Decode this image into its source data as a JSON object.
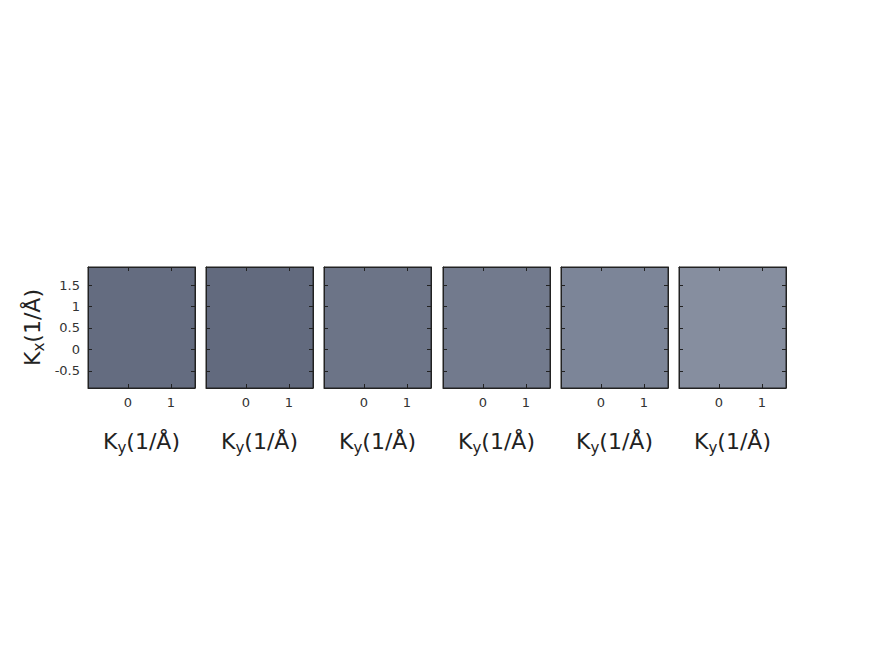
{
  "chart_data": [
    {
      "type": "image",
      "color": "#646c80",
      "xlim": [
        -0.93,
        1.56
      ],
      "ylim": [
        -0.9,
        1.92
      ],
      "xticks": [
        0,
        1
      ],
      "yticks": [
        -0.5,
        0,
        0.5,
        1,
        1.5
      ],
      "x_label": "Ky(1/Å)",
      "y_label": "Kx(1/Å)",
      "tick_labels": true
    },
    {
      "type": "image",
      "color": "#626a7e",
      "xlim": [
        -0.93,
        1.56
      ],
      "ylim": [
        -0.9,
        1.92
      ],
      "xticks": [
        0,
        1
      ],
      "yticks": [
        -0.5,
        0,
        0.5,
        1,
        1.5
      ],
      "x_label": "Ky(1/Å)",
      "tick_labels": "x"
    },
    {
      "type": "image",
      "color": "#6c7487",
      "xlim": [
        -0.93,
        1.56
      ],
      "ylim": [
        -0.9,
        1.92
      ],
      "xticks": [
        0,
        1
      ],
      "yticks": [
        -0.5,
        0,
        0.5,
        1,
        1.5
      ],
      "x_label": "Ky(1/Å)",
      "tick_labels": "x"
    },
    {
      "type": "image",
      "color": "#727a8d",
      "xlim": [
        -0.93,
        1.56
      ],
      "ylim": [
        -0.9,
        1.92
      ],
      "xticks": [
        0,
        1
      ],
      "yticks": [
        -0.5,
        0,
        0.5,
        1,
        1.5
      ],
      "x_label": "Ky(1/Å)",
      "tick_labels": "x"
    },
    {
      "type": "image",
      "color": "#7c8598",
      "xlim": [
        -0.93,
        1.56
      ],
      "ylim": [
        -0.9,
        1.92
      ],
      "xticks": [
        0,
        1
      ],
      "yticks": [
        -0.5,
        0,
        0.5,
        1,
        1.5
      ],
      "x_label": "Ky(1/Å)",
      "tick_labels": "x"
    },
    {
      "type": "image",
      "color": "#868e9f",
      "xlim": [
        -0.93,
        1.56
      ],
      "ylim": [
        -0.9,
        1.92
      ],
      "xticks": [
        0,
        1
      ],
      "yticks": [
        -0.5,
        0,
        0.5,
        1,
        1.5
      ],
      "x_label": "Ky(1/Å)",
      "tick_labels": "x"
    }
  ]
}
